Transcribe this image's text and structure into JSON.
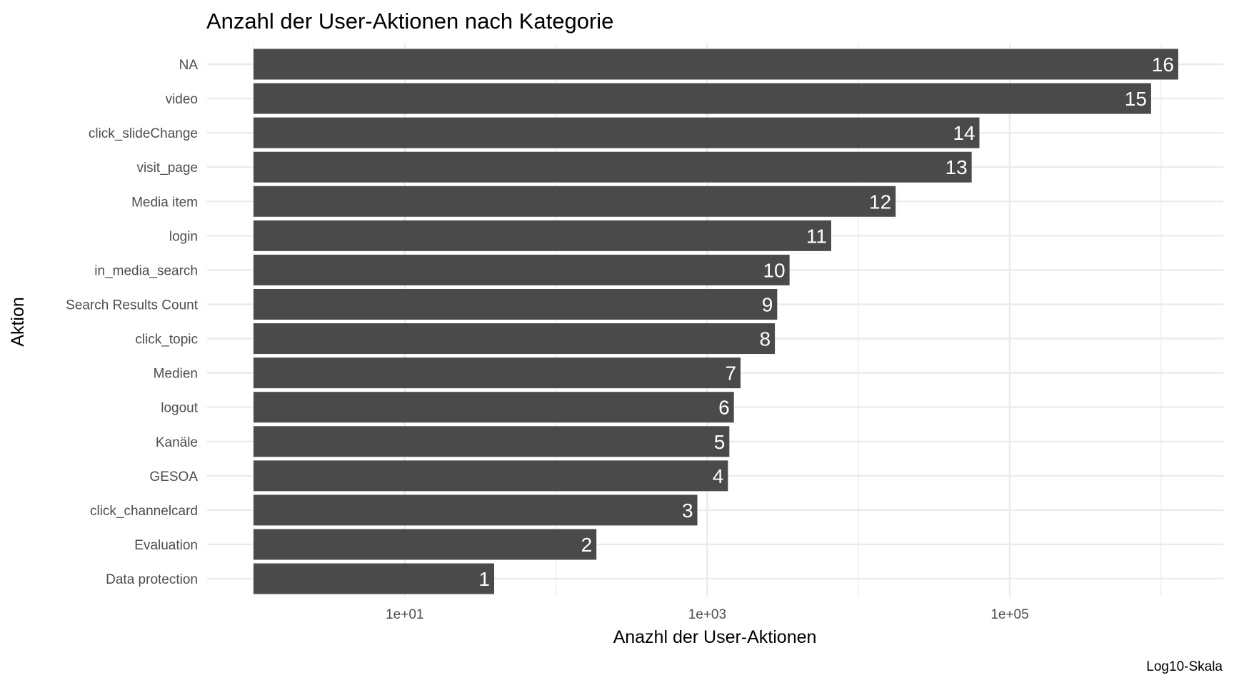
{
  "chart_data": {
    "type": "bar",
    "orientation": "horizontal",
    "title": "Anzahl der User-Aktionen nach Kategorie",
    "xlabel": "Anazhl der User-Aktionen",
    "ylabel": "Aktion",
    "caption": "Log10-Skala",
    "xscale": "log10",
    "xlim": [
      1,
      2000000
    ],
    "xticks": [
      10,
      1000,
      100000
    ],
    "xtick_labels": [
      "1e+01",
      "1e+03",
      "1e+05"
    ],
    "grid": true,
    "categories": [
      "NA",
      "video",
      "click_slideChange",
      "visit_page",
      "Media item",
      "login",
      "in_media_search",
      "Search Results Count",
      "click_topic",
      "Medien",
      "logout",
      "Kanäle",
      "GESOA",
      "click_channelcard",
      "Evaluation",
      "Data protection"
    ],
    "values": [
      1300000,
      860000,
      63000,
      56000,
      17600,
      6600,
      3500,
      2900,
      2800,
      1660,
      1500,
      1400,
      1370,
      860,
      185,
      39
    ],
    "data_labels": [
      "16",
      "15",
      "14",
      "13",
      "12",
      "11",
      "10",
      "9",
      "8",
      "7",
      "6",
      "5",
      "4",
      "3",
      "2",
      "1"
    ],
    "colors": {
      "bar": "#4a4a4a",
      "grid": "#ebebeb",
      "label": "#ffffff"
    }
  }
}
